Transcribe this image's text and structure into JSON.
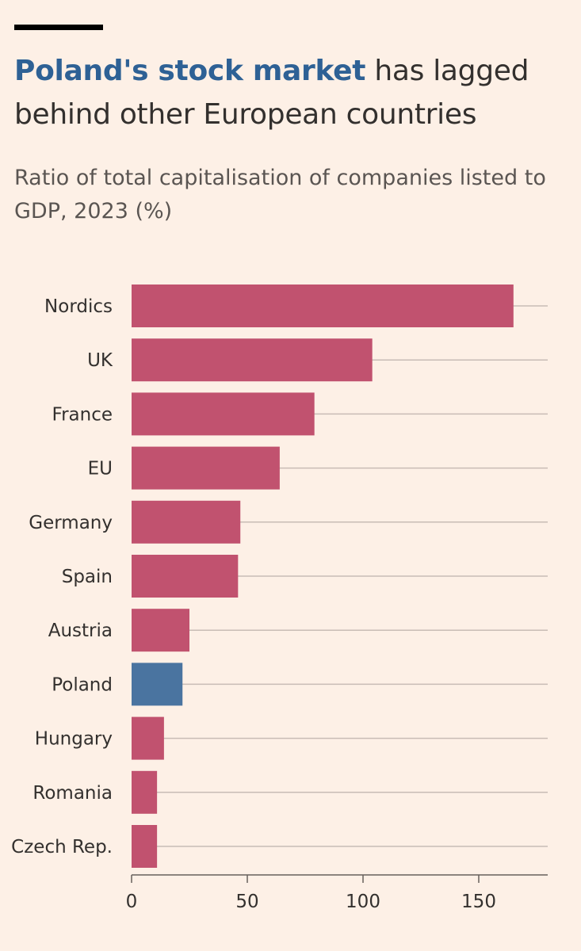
{
  "header": {
    "title_highlight": "Poland's stock market",
    "title_rest": " has lagged behind other European countries",
    "subtitle": "Ratio of total capitalisation of companies listed to GDP, 2023 (%)"
  },
  "chart_data": {
    "type": "bar",
    "orientation": "horizontal",
    "title": "Poland's stock market has lagged behind other European countries",
    "subtitle": "Ratio of total capitalisation of companies listed to GDP, 2023 (%)",
    "xlabel": "",
    "ylabel": "",
    "categories": [
      "Nordics",
      "UK",
      "France",
      "EU",
      "Germany",
      "Spain",
      "Austria",
      "Poland",
      "Hungary",
      "Romania",
      "Czech Rep."
    ],
    "values": [
      165,
      104,
      79,
      64,
      47,
      46,
      25,
      22,
      14,
      11,
      11
    ],
    "highlight": "Poland",
    "xlim": [
      0,
      180
    ],
    "xticks": [
      0,
      50,
      100,
      150
    ],
    "grid": true,
    "colors": {
      "bar": "#c1526f",
      "highlight": "#4a74a0",
      "grid": "#c8bcb5",
      "axis": "#66605c",
      "background": "#fdf0e6",
      "title_highlight": "#2e6195"
    }
  }
}
